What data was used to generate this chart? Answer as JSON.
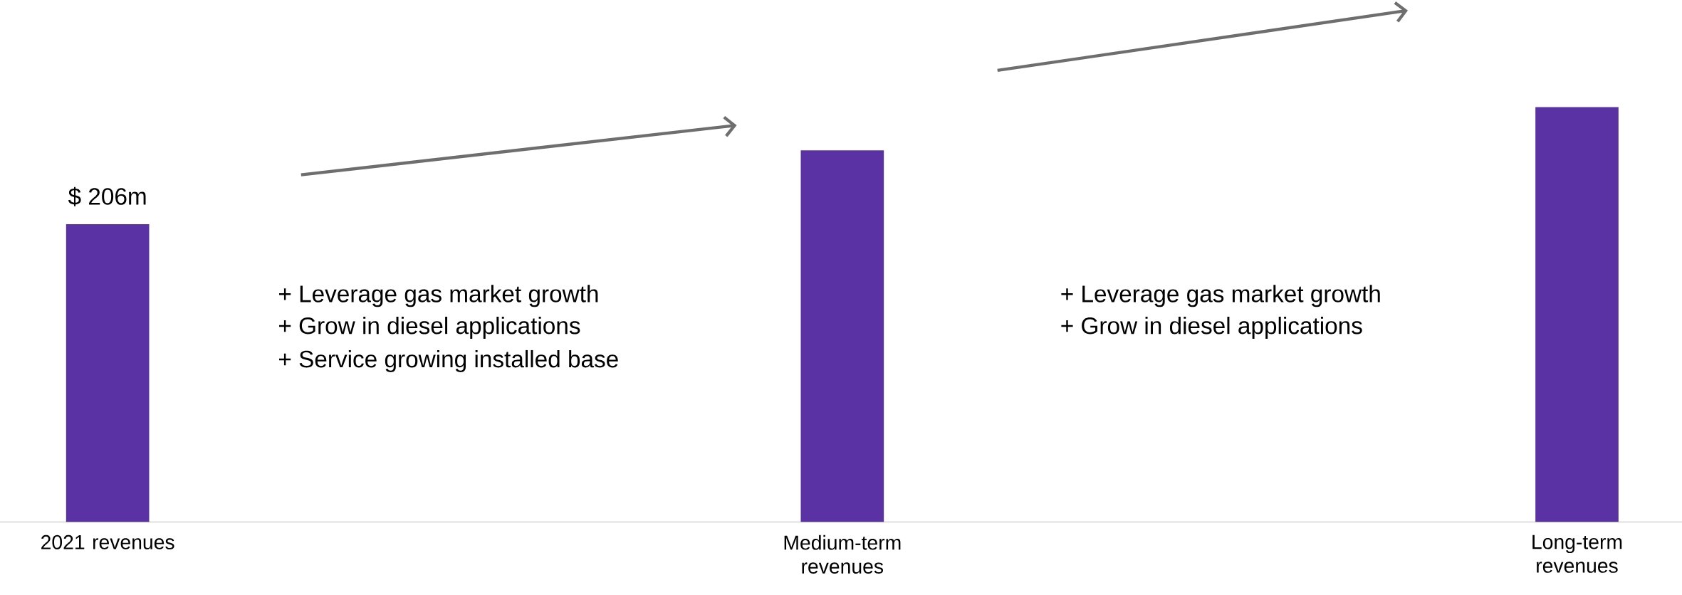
{
  "chart_data": {
    "type": "bar",
    "categories": [
      "2021 revenues",
      "Medium-term revenues",
      "Long-term revenues"
    ],
    "values": [
      206,
      257,
      287
    ],
    "value_labels": [
      "$ 206m",
      null,
      null
    ],
    "color": "#5a32a3",
    "annotations": [
      "+ Leverage gas market growth",
      "+ Grow in diesel applications",
      "+ Service growing installed base",
      "+ Leverage gas market growth",
      "+ Grow in diesel applications"
    ]
  }
}
